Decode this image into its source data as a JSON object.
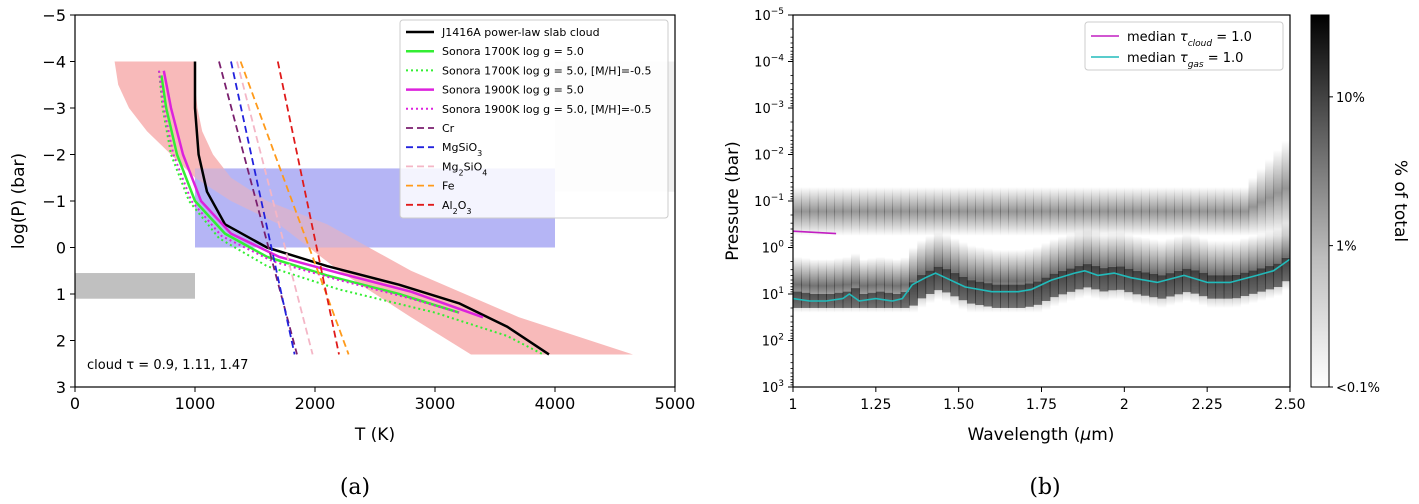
{
  "chart_data": [
    {
      "type": "line",
      "panel_label": "(a)",
      "xlabel": "T (K)",
      "ylabel": "log(P) (bar)",
      "xlim": [
        0,
        5000
      ],
      "ylim": [
        3,
        -5
      ],
      "xticks": [
        "0",
        "1000",
        "2000",
        "3000",
        "4000",
        "5000"
      ],
      "yticks": [
        "−5",
        "−4",
        "−3",
        "−2",
        "−1",
        "0",
        "1",
        "2",
        "3"
      ],
      "annotation": "cloud τ = 0.9, 1.11, 1.47",
      "shaded_regions": [
        {
          "x": [
            0,
            1000
          ],
          "y": [
            0.55,
            1.1
          ],
          "color": "#bebebe"
        },
        {
          "x": [
            1000,
            4000
          ],
          "y": [
            -1.7,
            0
          ],
          "color": "#b3b3f5"
        },
        {
          "x": [
            4000,
            5000
          ],
          "y": [
            -4,
            -1.2
          ],
          "color": "#f0f0f0"
        }
      ],
      "envelope": {
        "color": "#f7b3b3",
        "T_low": [
          330,
          360,
          450,
          600,
          800,
          1000,
          1300,
          1700,
          2200,
          2800,
          3300
        ],
        "T_high": [
          1000,
          1000,
          1020,
          1060,
          1150,
          1300,
          1600,
          2100,
          2800,
          3700,
          4650
        ],
        "logP": [
          -4,
          -3.5,
          -3,
          -2.5,
          -2,
          -1.5,
          -1,
          -0.5,
          0.5,
          1.5,
          2.3
        ]
      },
      "series": [
        {
          "name": "J1416A power-law slab cloud",
          "color": "#000000",
          "dash": "solid",
          "width": 2.5,
          "T": [
            1000,
            1000,
            1030,
            1100,
            1250,
            1600,
            2100,
            2700,
            3200,
            3600,
            3950
          ],
          "logP": [
            -4,
            -3,
            -2,
            -1.2,
            -0.5,
            0,
            0.4,
            0.8,
            1.2,
            1.7,
            2.3
          ]
        },
        {
          "name": "Sonora 1700K log g = 5.0",
          "color": "#33ee33",
          "dash": "solid",
          "width": 2.5,
          "T": [
            720,
            760,
            850,
            1000,
            1250,
            1600,
            2100,
            2700,
            3200
          ],
          "logP": [
            -3.7,
            -3,
            -2,
            -1,
            -0.3,
            0.2,
            0.6,
            1.0,
            1.4
          ]
        },
        {
          "name": "Sonora 1700K log g = 5.0, [M/H]=-0.5",
          "color": "#33ee33",
          "dash": "dot",
          "width": 2,
          "T": [
            700,
            730,
            800,
            950,
            1200,
            1600,
            2200,
            3000,
            3600,
            3900
          ],
          "logP": [
            -3.8,
            -3,
            -2,
            -1,
            -0.2,
            0.4,
            0.9,
            1.4,
            1.9,
            2.3
          ]
        },
        {
          "name": "Sonora 1900K log g = 5.0",
          "color": "#dd22dd",
          "dash": "solid",
          "width": 2.5,
          "T": [
            740,
            800,
            900,
            1050,
            1300,
            1700,
            2200,
            2800,
            3400
          ],
          "logP": [
            -3.8,
            -3,
            -2,
            -1,
            -0.3,
            0.2,
            0.55,
            0.95,
            1.5
          ]
        },
        {
          "name": "Sonora 1900K log g = 5.0, [M/H]=-0.5",
          "color": "#dd22dd",
          "dash": "dot",
          "width": 2,
          "T": [
            700,
            740,
            820,
            970,
            1220,
            1650,
            2200,
            2800,
            3200
          ],
          "logP": [
            -3.8,
            -3,
            -2,
            -1,
            -0.25,
            0.3,
            0.7,
            1.1,
            1.4
          ]
        },
        {
          "name": "Cr",
          "color": "#7a1f6e",
          "dash": "dash",
          "width": 1.8,
          "T": [
            1200,
            1850
          ],
          "logP": [
            -4,
            2.3
          ]
        },
        {
          "name": "MgSiO3",
          "label_html": "MgSiO<tspan baseline-shift='sub' font-size='8'>3</tspan>",
          "color": "#2222dd",
          "dash": "dash",
          "width": 1.8,
          "T": [
            1300,
            1830
          ],
          "logP": [
            -4,
            2.3
          ]
        },
        {
          "name": "Mg2SiO4",
          "label_html": "Mg<tspan baseline-shift='sub' font-size='8'>2</tspan>SiO<tspan baseline-shift='sub' font-size='8'>4</tspan>",
          "color": "#f4b6c6",
          "dash": "dash",
          "width": 1.8,
          "T": [
            1350,
            1980
          ],
          "logP": [
            -4,
            2.3
          ]
        },
        {
          "name": "Fe",
          "color": "#ff9a1a",
          "dash": "dash",
          "width": 1.8,
          "T": [
            1380,
            2280
          ],
          "logP": [
            -4,
            2.3
          ]
        },
        {
          "name": "Al2O3",
          "label_html": "Al<tspan baseline-shift='sub' font-size='8'>2</tspan>O<tspan baseline-shift='sub' font-size='8'>3</tspan>",
          "color": "#e01a1a",
          "dash": "dash",
          "width": 1.8,
          "T": [
            1690,
            2200
          ],
          "logP": [
            -4,
            2.3
          ]
        }
      ],
      "legend": "top-right"
    },
    {
      "type": "heatmap",
      "panel_label": "(b)",
      "xlabel": "Wavelength (μm)",
      "ylabel": "Pressure (bar)",
      "xlim": [
        1,
        2.5
      ],
      "ylim_exponent": [
        -5,
        3
      ],
      "xticks": [
        "1",
        "1.25",
        "1.50",
        "1.75",
        "2",
        "2.25",
        "2.50"
      ],
      "xtick_values": [
        1,
        1.25,
        1.5,
        1.75,
        2,
        2.25,
        2.5
      ],
      "yticks": [
        "10−5",
        "10−4",
        "10−3",
        "10−2",
        "10−1",
        "100",
        "101",
        "102",
        "103"
      ],
      "colorbar": {
        "label": "% of total",
        "ticks": [
          "10%",
          "1%",
          "<0.1%"
        ],
        "tick_positions": [
          0.22,
          0.62,
          1.0
        ]
      },
      "series": [
        {
          "name": "median τcloud = 1.0",
          "label_base": "median ",
          "label_sub": "cloud",
          "label_tail": " = 1.0",
          "color": "#c21ec2",
          "x": [
            1.0,
            1.13
          ],
          "logP": [
            -0.35,
            -0.3
          ]
        },
        {
          "name": "median τgas = 1.0",
          "label_base": "median ",
          "label_sub": "gas",
          "label_tail": " = 1.0",
          "color": "#22bbbb",
          "x": [
            1.0,
            1.05,
            1.1,
            1.15,
            1.17,
            1.2,
            1.25,
            1.3,
            1.33,
            1.36,
            1.4,
            1.43,
            1.46,
            1.52,
            1.6,
            1.68,
            1.72,
            1.78,
            1.85,
            1.88,
            1.92,
            1.97,
            2.02,
            2.1,
            2.18,
            2.25,
            2.32,
            2.4,
            2.45,
            2.5
          ],
          "logP": [
            1.1,
            1.15,
            1.15,
            1.1,
            1.0,
            1.15,
            1.1,
            1.15,
            1.1,
            0.8,
            0.65,
            0.55,
            0.65,
            0.85,
            0.95,
            0.95,
            0.9,
            0.7,
            0.55,
            0.5,
            0.6,
            0.55,
            0.65,
            0.75,
            0.6,
            0.75,
            0.75,
            0.6,
            0.5,
            0.25
          ]
        }
      ],
      "legend": "top-right"
    }
  ]
}
